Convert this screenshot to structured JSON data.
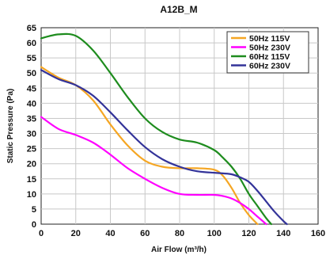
{
  "chart_data": {
    "type": "line",
    "title": "A12B_M",
    "xlabel": "Air Flow (m³/h)",
    "ylabel": "Static Pressure (Pa)",
    "xlim": [
      0,
      160
    ],
    "ylim": [
      0,
      65
    ],
    "xticks": [
      0,
      20,
      40,
      60,
      80,
      100,
      120,
      140,
      160
    ],
    "yticks": [
      0,
      5,
      10,
      15,
      20,
      25,
      30,
      35,
      40,
      45,
      50,
      55,
      60,
      65
    ],
    "grid": true,
    "legend_position": "top-right",
    "series": [
      {
        "name": "50Hz 115V",
        "color": "#f5a623",
        "x": [
          0,
          10,
          20,
          30,
          40,
          50,
          60,
          70,
          80,
          90,
          100,
          105,
          110,
          115,
          120,
          125
        ],
        "y": [
          52,
          48.5,
          46,
          41,
          33,
          26,
          21,
          19,
          18.5,
          18.5,
          18,
          16,
          12,
          7,
          3,
          0
        ]
      },
      {
        "name": "50Hz 230V",
        "color": "#ff00ff",
        "x": [
          0,
          10,
          20,
          30,
          40,
          50,
          60,
          70,
          80,
          90,
          100,
          105,
          110,
          115,
          120,
          125,
          130
        ],
        "y": [
          35.5,
          31.5,
          29.5,
          27,
          23,
          18.5,
          15,
          12,
          10,
          9.7,
          9.7,
          9.3,
          8.5,
          7,
          5,
          2.5,
          0
        ]
      },
      {
        "name": "60Hz 115V",
        "color": "#1e8c1e",
        "x": [
          0,
          10,
          20,
          30,
          40,
          50,
          60,
          70,
          80,
          90,
          100,
          105,
          110,
          115,
          120,
          125,
          130,
          133
        ],
        "y": [
          61.5,
          62.8,
          62.3,
          57.5,
          50,
          42,
          35,
          30.5,
          28,
          27,
          24.5,
          22,
          19,
          15,
          10,
          6,
          2,
          0
        ]
      },
      {
        "name": "60Hz 230V",
        "color": "#333399",
        "x": [
          0,
          10,
          20,
          30,
          40,
          50,
          60,
          70,
          80,
          90,
          100,
          105,
          110,
          115,
          120,
          125,
          130,
          135,
          140,
          142
        ],
        "y": [
          51,
          48,
          46,
          42.5,
          37,
          31,
          25.5,
          21.5,
          19,
          17.5,
          17,
          16.8,
          16.5,
          15.5,
          14,
          11,
          7.5,
          4,
          1,
          0
        ]
      }
    ]
  }
}
